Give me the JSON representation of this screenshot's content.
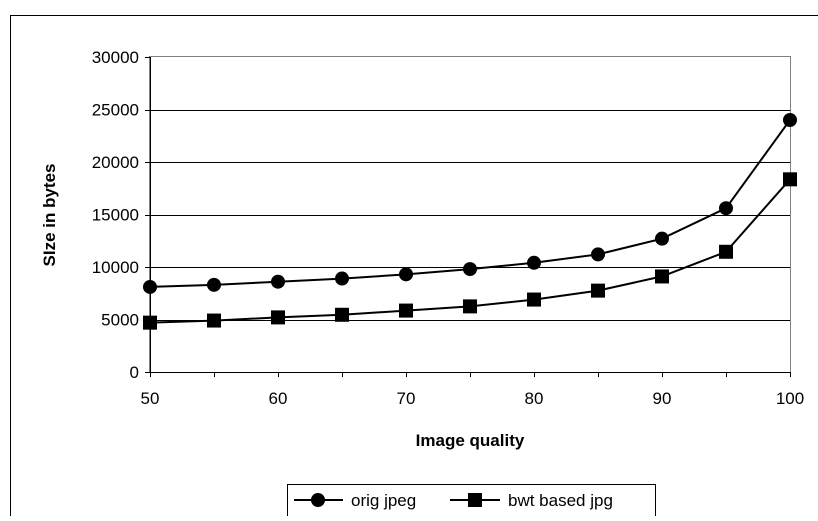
{
  "chart_data": {
    "type": "line",
    "title": "",
    "xlabel": "Image quality",
    "ylabel": "SIze in bytes",
    "x": [
      50,
      55,
      60,
      65,
      70,
      75,
      80,
      85,
      90,
      95,
      100
    ],
    "xticks": [
      50,
      60,
      70,
      80,
      90,
      100
    ],
    "xlim": [
      50,
      100
    ],
    "yticks": [
      0,
      5000,
      10000,
      15000,
      20000,
      25000,
      30000
    ],
    "ylim": [
      0,
      30000
    ],
    "grid": "horizontal",
    "legend_position": "bottom",
    "series": [
      {
        "name": "orig jpeg",
        "marker": "circle",
        "color": "#000000",
        "values": [
          8100,
          8300,
          8600,
          8900,
          9300,
          9800,
          10400,
          11200,
          12700,
          15600,
          24000
        ]
      },
      {
        "name": "bwt based jpg",
        "marker": "square",
        "color": "#000000",
        "values": [
          4700,
          4900,
          5200,
          5450,
          5850,
          6250,
          6900,
          7750,
          9100,
          11450,
          18350
        ]
      }
    ]
  }
}
